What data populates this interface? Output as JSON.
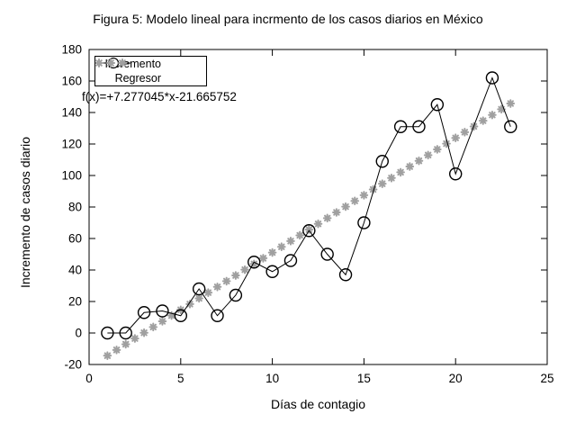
{
  "title": "Figura 5: Modelo lineal para incrmento de los casos diarios en México",
  "annotation": "f(x)=+7.277045*x-21.665752",
  "legend": {
    "incremento_label": "Incremento",
    "regresor_label": "Regresor"
  },
  "colors": {
    "foreground": "#000000",
    "regressor_gray": "#a0a0a0",
    "background": "#ffffff"
  },
  "chart_data": {
    "type": "line",
    "title": "Figura 5: Modelo lineal para incrmento de los casos diarios en México",
    "xlabel": "Días de contagio",
    "ylabel": "Incremento de casos diario",
    "xlim": [
      0,
      25
    ],
    "ylim": [
      -20,
      180
    ],
    "x_ticks": [
      0,
      5,
      10,
      15,
      20,
      25
    ],
    "y_ticks": [
      -20,
      0,
      20,
      40,
      60,
      80,
      100,
      120,
      140,
      160,
      180
    ],
    "grid": false,
    "legend_position": "top-left",
    "annotation": "f(x)=+7.277045*x-21.665752",
    "series": [
      {
        "name": "Incremento",
        "style": "linespoints",
        "marker": "open-circle",
        "color": "#000000",
        "x": [
          1,
          2,
          3,
          4,
          5,
          6,
          7,
          8,
          9,
          10,
          11,
          12,
          13,
          14,
          15,
          16,
          17,
          18,
          19,
          20,
          22,
          23
        ],
        "y": [
          0,
          0,
          13,
          14,
          11,
          28,
          11,
          24,
          45,
          39,
          46,
          65,
          50,
          37,
          70,
          109,
          131,
          131,
          145,
          101,
          162,
          131
        ]
      },
      {
        "name": "Regresor",
        "style": "dots",
        "marker": "asterisk",
        "color": "#a0a0a0",
        "slope": 7.277045,
        "intercept": -21.665752,
        "x_start": 1,
        "x_end": 23,
        "x_step": 0.5
      }
    ]
  }
}
